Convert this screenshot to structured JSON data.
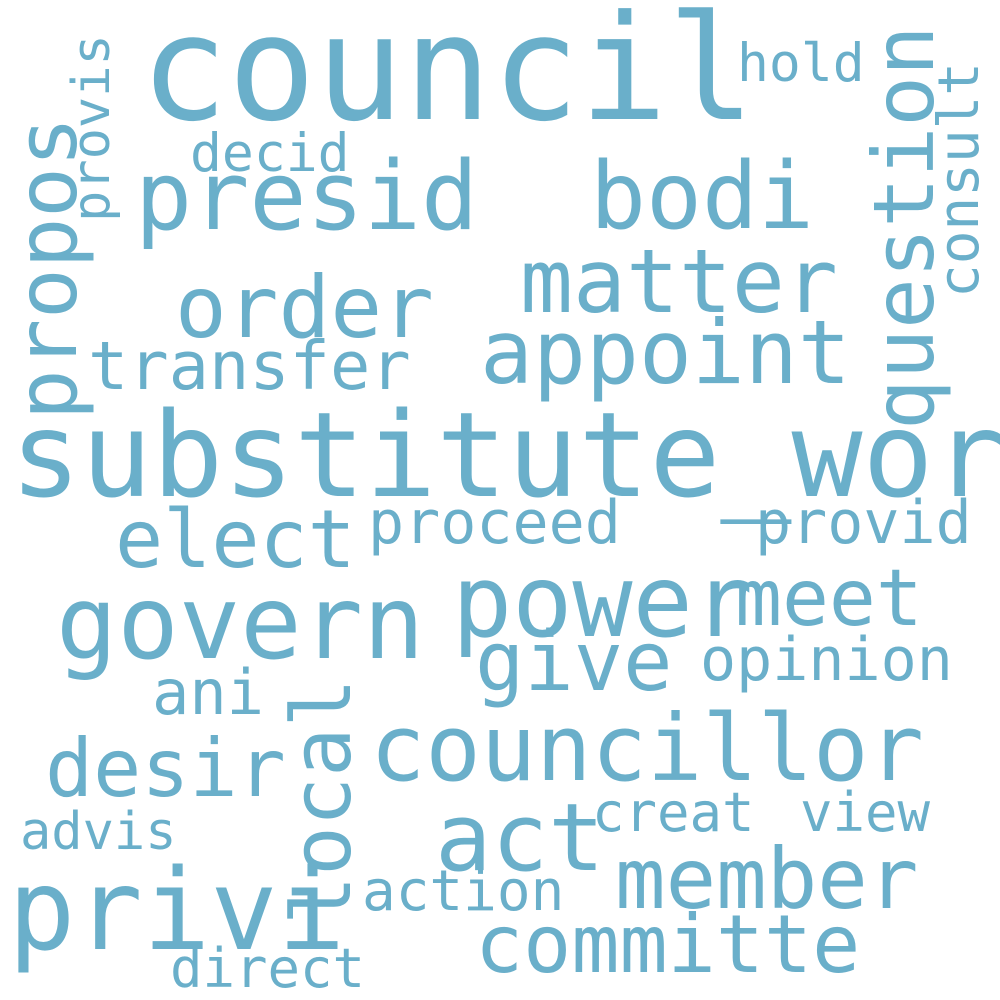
{
  "word_cloud": {
    "color": "#6aafca",
    "background": "#ffffff",
    "words": [
      {
        "text": "council",
        "orientation": "horizontal"
      },
      {
        "text": "substitute_word",
        "orientation": "horizontal"
      },
      {
        "text": "govern",
        "orientation": "horizontal"
      },
      {
        "text": "privi",
        "orientation": "horizontal"
      },
      {
        "text": "presid",
        "orientation": "horizontal"
      },
      {
        "text": "bodi",
        "orientation": "horizontal"
      },
      {
        "text": "power",
        "orientation": "horizontal"
      },
      {
        "text": "councillor",
        "orientation": "horizontal"
      },
      {
        "text": "question",
        "orientation": "vertical"
      },
      {
        "text": "matter",
        "orientation": "horizontal"
      },
      {
        "text": "appoint",
        "orientation": "horizontal"
      },
      {
        "text": "order",
        "orientation": "horizontal"
      },
      {
        "text": "act",
        "orientation": "horizontal"
      },
      {
        "text": "propos",
        "orientation": "vertical"
      },
      {
        "text": "local",
        "orientation": "vertical"
      },
      {
        "text": "member",
        "orientation": "horizontal"
      },
      {
        "text": "committe",
        "orientation": "horizontal"
      },
      {
        "text": "elect",
        "orientation": "horizontal"
      },
      {
        "text": "desir",
        "orientation": "horizontal"
      },
      {
        "text": "give",
        "orientation": "horizontal"
      },
      {
        "text": "meet",
        "orientation": "horizontal"
      },
      {
        "text": "transfer",
        "orientation": "horizontal"
      },
      {
        "text": "proceed",
        "orientation": "horizontal"
      },
      {
        "text": "provid",
        "orientation": "horizontal"
      },
      {
        "text": "opinion",
        "orientation": "horizontal"
      },
      {
        "text": "ani",
        "orientation": "horizontal"
      },
      {
        "text": "creat",
        "orientation": "horizontal"
      },
      {
        "text": "view",
        "orientation": "horizontal"
      },
      {
        "text": "action",
        "orientation": "horizontal"
      },
      {
        "text": "advis",
        "orientation": "horizontal"
      },
      {
        "text": "direct",
        "orientation": "horizontal"
      },
      {
        "text": "hold",
        "orientation": "horizontal"
      },
      {
        "text": "decid",
        "orientation": "horizontal"
      },
      {
        "text": "consult",
        "orientation": "vertical"
      },
      {
        "text": "provis",
        "orientation": "vertical"
      }
    ]
  }
}
